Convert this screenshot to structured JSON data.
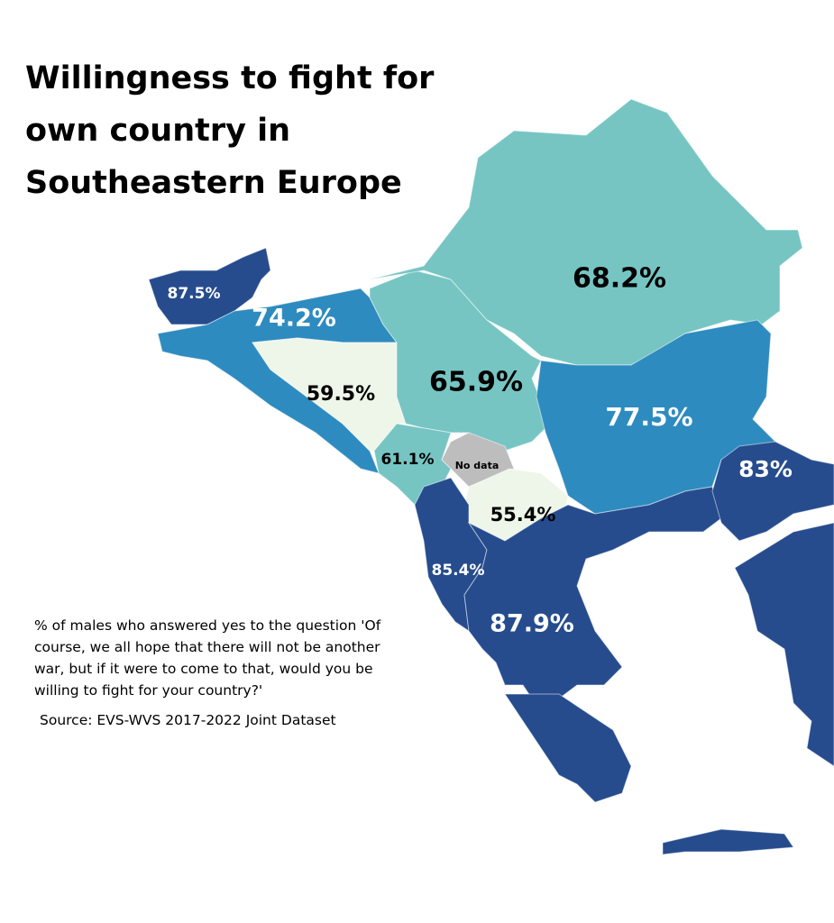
{
  "header": {
    "title": "Willingness to fight for own country in Southeastern Europe"
  },
  "description": "% of males who answered yes to the question 'Of course, we all hope that there will not be another war, but if it were to come to that, would you be willing to fight for your country?'",
  "source": "Source: EVS-WVS 2017-2022 Joint Dataset",
  "regions": [
    {
      "label": "87.5%",
      "color": "#264c8e"
    },
    {
      "label": "74.2%",
      "color": "#2e8bbf"
    },
    {
      "label": "59.5%",
      "color": "#eef6e9"
    },
    {
      "label": "65.9%",
      "color": "#76c5c3"
    },
    {
      "label": "68.2%",
      "color": "#76c5c3"
    },
    {
      "label": "77.5%",
      "color": "#2e8bbf"
    },
    {
      "label": "61.1%",
      "color": "#76c5c3"
    },
    {
      "label": "No data",
      "color": "#bdbdbd"
    },
    {
      "label": "55.4%",
      "color": "#eef6e9"
    },
    {
      "label": "85.4%",
      "color": "#264c8e"
    },
    {
      "label": "87.9%",
      "color": "#264c8e"
    },
    {
      "label": "83%",
      "color": "#264c8e"
    }
  ]
}
